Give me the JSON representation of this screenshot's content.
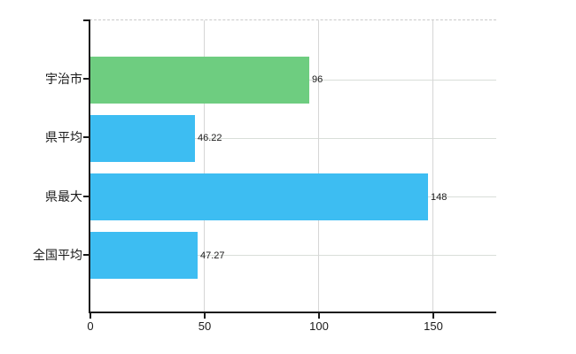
{
  "chart_data": {
    "type": "bar",
    "orientation": "horizontal",
    "title": "",
    "xlabel": "",
    "ylabel": "",
    "categories": [
      "宇治市",
      "県平均",
      "県最大",
      "全国平均"
    ],
    "values": [
      96,
      46.22,
      148,
      47.27
    ],
    "value_labels": [
      "96",
      "46.22",
      "148",
      "47.27"
    ],
    "bar_colors": [
      "#6ecd80",
      "#3dbdf2",
      "#3dbdf2",
      "#3dbdf2"
    ],
    "xticks": [
      0,
      50,
      100,
      150
    ],
    "xtick_labels": [
      "0",
      "50",
      "100",
      "150"
    ],
    "xlim": [
      0,
      178
    ],
    "grid": true,
    "legend": false,
    "colors": {
      "axis": "#1a1a1a",
      "gridline_vertical": "#d6d6d6",
      "gridline_horizontal": "#d9ded9",
      "top_border_dashed": "#c9c9c9",
      "text": "#1a1a1a",
      "background": "#ffffff"
    }
  }
}
